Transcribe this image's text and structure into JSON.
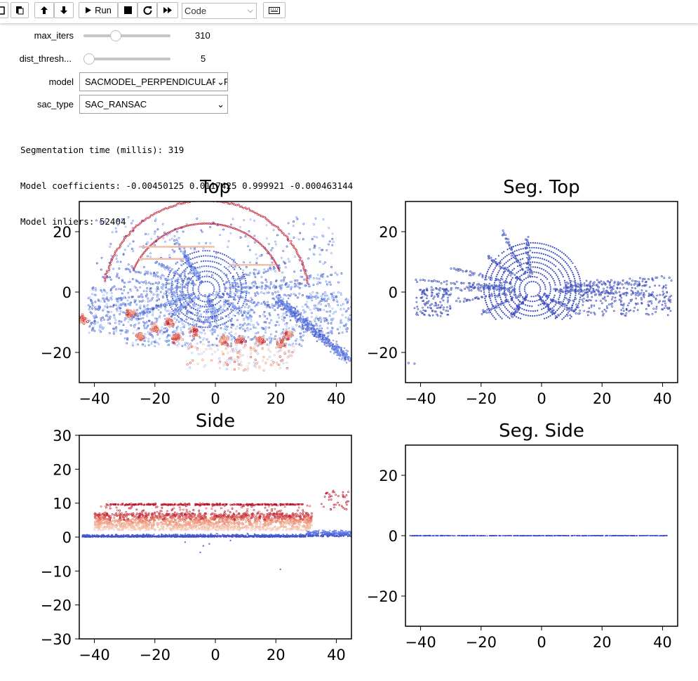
{
  "toolbar": {
    "run_label": "Run",
    "cell_type": "Code",
    "icons": [
      "paste-icon",
      "move-up-icon",
      "move-down-icon",
      "run-icon",
      "stop-icon",
      "restart-icon",
      "fast-forward-icon",
      "keyboard-icon"
    ]
  },
  "widgets": {
    "max_iters": {
      "label": "max_iters",
      "value": "310",
      "fraction": 0.35
    },
    "dist_threshold": {
      "label": "dist_thresh...",
      "value": "5",
      "fraction": 0.0
    },
    "model": {
      "label": "model",
      "value": "SACMODEL_PERPENDICULAR_PLANE"
    },
    "sac_type": {
      "label": "sac_type",
      "value": "SAC_RANSAC"
    }
  },
  "output_lines": [
    "Segmentation time (millis): 319",
    "Model coefficients: -0.00450125 0.0117425 0.999921 -0.000463144",
    "Model inliers: 52404"
  ],
  "chart_data": [
    {
      "type": "scatter",
      "title": "Top",
      "xlim": [
        -45,
        45
      ],
      "ylim": [
        -30,
        30
      ],
      "xticks": [
        -40,
        -20,
        0,
        20,
        40
      ],
      "yticks": [
        20,
        0,
        -20
      ],
      "colormap": "coolwarm",
      "colors": [
        "#3b4cc0",
        "#b40426"
      ]
    },
    {
      "type": "scatter",
      "title": "Seg. Top",
      "xlim": [
        -45,
        45
      ],
      "ylim": [
        -30,
        30
      ],
      "xticks": [
        -40,
        -20,
        0,
        20,
        40
      ],
      "yticks": [
        20,
        0,
        -20
      ],
      "colors": [
        "#3b4cc0"
      ]
    },
    {
      "type": "scatter",
      "title": "Side",
      "xlim": [
        -45,
        45
      ],
      "ylim": [
        -30,
        30
      ],
      "xticks": [
        -40,
        -20,
        0,
        20,
        40
      ],
      "yticks": [
        30,
        20,
        10,
        0,
        -10,
        -20,
        -30
      ],
      "colormap": "coolwarm",
      "colors": [
        "#3b4cc0",
        "#b40426"
      ]
    },
    {
      "type": "scatter",
      "title": "Seg. Side",
      "xlim": [
        -45,
        45
      ],
      "ylim": [
        -30,
        30
      ],
      "xticks": [
        -40,
        -20,
        0,
        20,
        40
      ],
      "yticks": [
        20,
        0,
        -20
      ],
      "colors": [
        "#3b4cc0"
      ]
    }
  ]
}
